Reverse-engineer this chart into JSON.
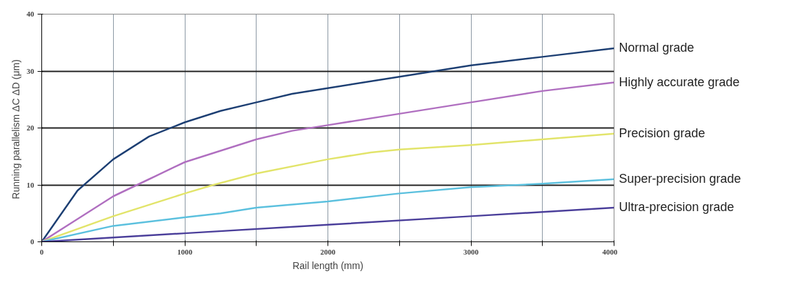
{
  "chart_data": {
    "type": "line",
    "xlabel": "Rail length (mm)",
    "ylabel": "Running parallelism ΔC  ΔD (μm)",
    "xlim": [
      0,
      4000
    ],
    "ylim": [
      0,
      40
    ],
    "xticks": [
      0,
      {
        "value": 500,
        "label": null
      },
      1000,
      {
        "value": 1500,
        "label": null
      },
      2000,
      {
        "value": 2500,
        "label": null
      },
      3000,
      {
        "value": 3500,
        "label": null
      },
      4000
    ],
    "yticks": [
      0,
      10,
      20,
      30,
      40
    ],
    "grid": true,
    "legend": false,
    "marker": "none",
    "line_style": "solid",
    "series": [
      {
        "name": "Normal grade",
        "color": "#1d3f73",
        "x": [
          0,
          250,
          500,
          750,
          1000,
          1250,
          1500,
          1750,
          2000,
          2500,
          3000,
          3500,
          4000
        ],
        "values": [
          0,
          9,
          14.5,
          18.5,
          21,
          23,
          24.5,
          26,
          27,
          29,
          31,
          32.5,
          34
        ]
      },
      {
        "name": "Highly accurate grade",
        "color": "#b06fc0",
        "x": [
          0,
          250,
          500,
          750,
          1000,
          1250,
          1500,
          1750,
          2000,
          2500,
          3000,
          3500,
          4000
        ],
        "values": [
          0,
          4,
          8,
          11,
          14,
          16,
          18,
          19.5,
          20.5,
          22.5,
          24.5,
          26.5,
          28
        ]
      },
      {
        "name": "Precision grade",
        "color": "#e2e46a",
        "x": [
          0,
          500,
          1000,
          1200,
          1500,
          2000,
          2300,
          2500,
          3000,
          3500,
          4000
        ],
        "values": [
          0,
          4.5,
          8.5,
          10,
          12,
          14.5,
          15.7,
          16.2,
          17,
          18,
          19
        ]
      },
      {
        "name": "Super-precision grade",
        "color": "#5bc0de",
        "x": [
          0,
          500,
          1000,
          1250,
          1500,
          2000,
          2500,
          3000,
          3500,
          4000
        ],
        "values": [
          0,
          2.8,
          4.3,
          5,
          6,
          7.1,
          8.5,
          9.6,
          10.2,
          11
        ]
      },
      {
        "name": "Ultra-precision grade",
        "color": "#4a3e9a",
        "x": [
          0,
          1000,
          2000,
          3000,
          4000
        ],
        "values": [
          0,
          1.5,
          3,
          4.5,
          6
        ]
      }
    ]
  }
}
